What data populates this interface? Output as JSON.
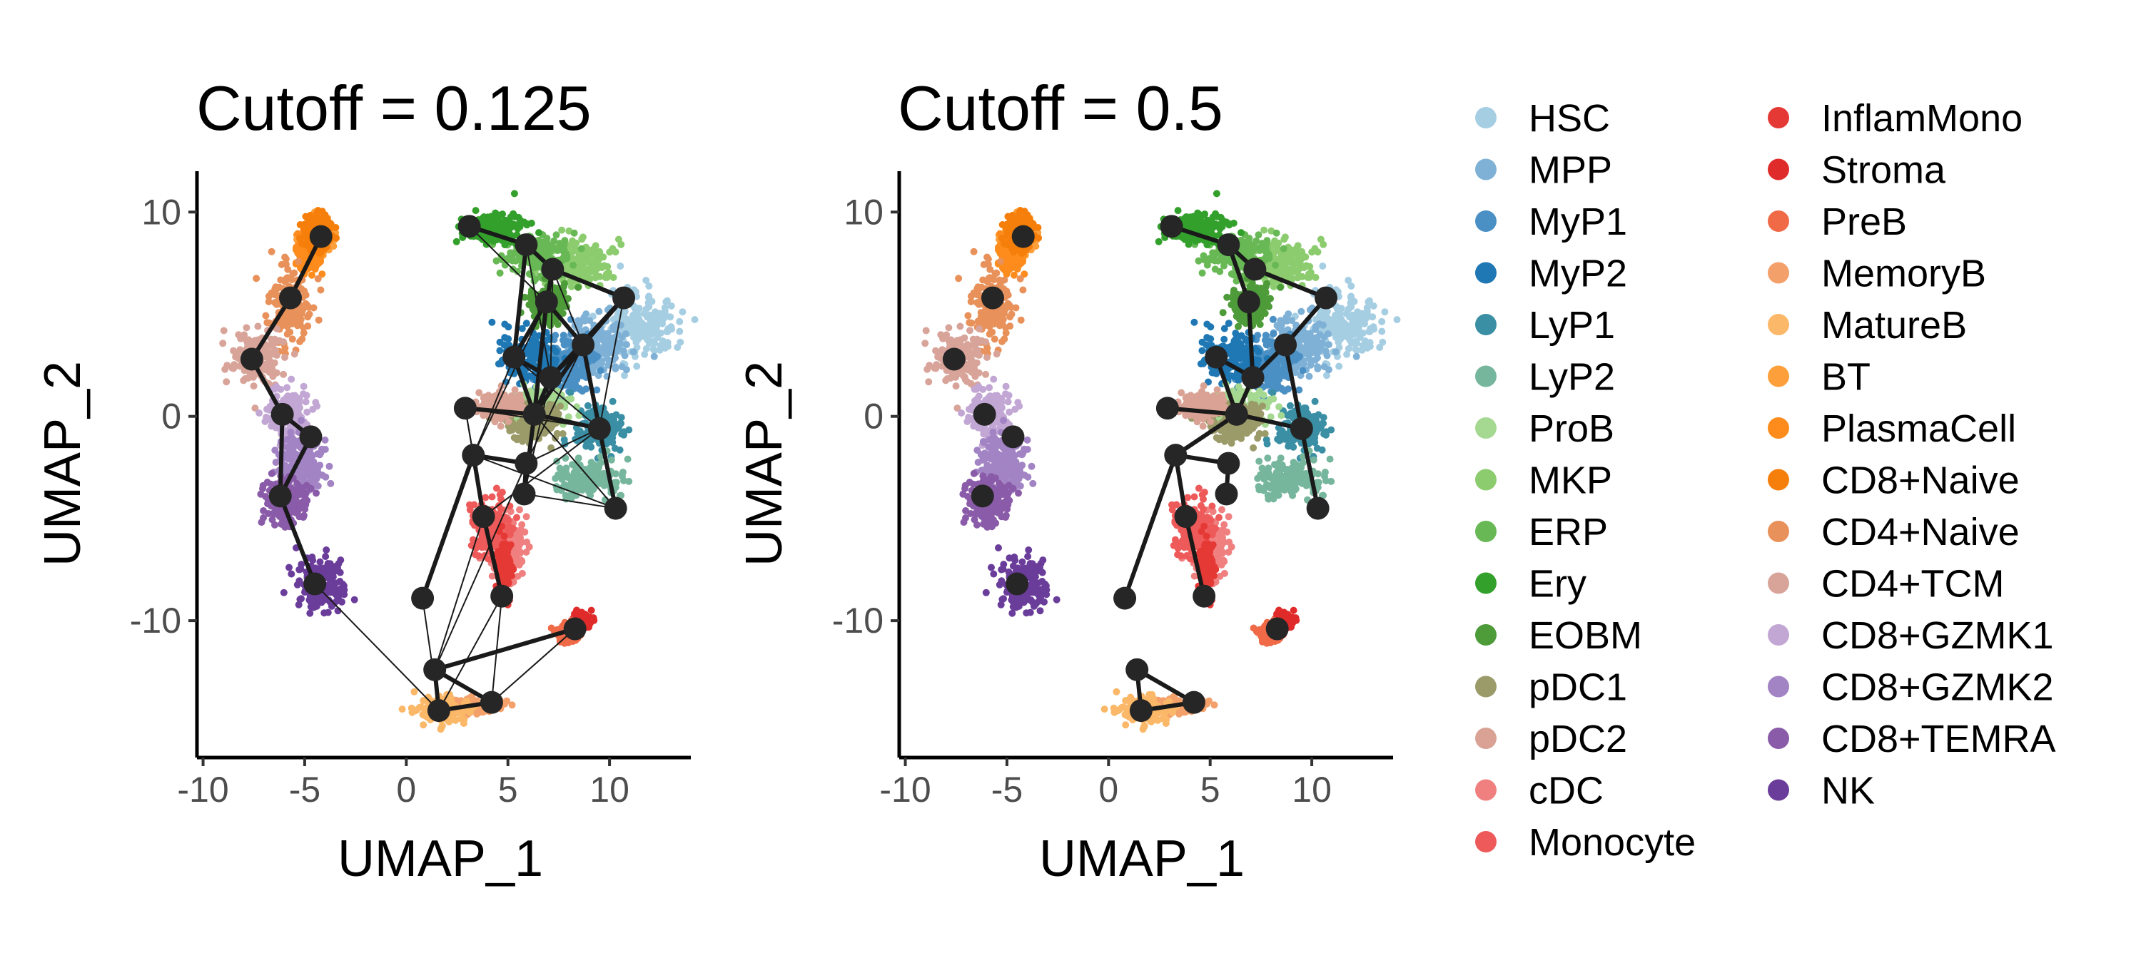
{
  "chart_data": [
    {
      "type": "scatter",
      "title": "Cutoff = 0.125",
      "xlabel": "UMAP_1",
      "ylabel": "UMAP_2",
      "xlim": [
        -10.3,
        14
      ],
      "ylim": [
        -16.7,
        12
      ],
      "xticks": [
        "-10",
        "-5",
        "0",
        "5",
        "10"
      ],
      "yticks": [
        "-10",
        "0",
        "10"
      ],
      "grid": false,
      "clusters": [
        {
          "cell_type": "HSC",
          "color": "#a6cee3",
          "center": [
            11.5,
            4.5
          ],
          "spread": [
            1.8,
            1.6
          ]
        },
        {
          "cell_type": "MPP",
          "color": "#7fb1d6",
          "center": [
            9.5,
            3.5
          ],
          "spread": [
            1.3,
            1.3
          ]
        },
        {
          "cell_type": "MyP1",
          "color": "#4a90c4",
          "center": [
            8.0,
            2.5
          ],
          "spread": [
            1.2,
            1.2
          ]
        },
        {
          "cell_type": "MyP2",
          "color": "#1f78b4",
          "center": [
            6.0,
            2.8
          ],
          "spread": [
            1.3,
            1.2
          ]
        },
        {
          "cell_type": "LyP1",
          "color": "#3b8fa5",
          "center": [
            9.5,
            -0.5
          ],
          "spread": [
            1.2,
            1.0
          ]
        },
        {
          "cell_type": "LyP2",
          "color": "#76b69d",
          "center": [
            9.0,
            -3.0
          ],
          "spread": [
            1.5,
            0.8
          ]
        },
        {
          "cell_type": "ProB",
          "color": "#a5d991",
          "center": [
            6.5,
            0.5
          ],
          "spread": [
            1.5,
            0.8
          ]
        },
        {
          "cell_type": "MKP",
          "color": "#8ccc6f",
          "center": [
            8.5,
            7.5
          ],
          "spread": [
            1.5,
            1.0
          ]
        },
        {
          "cell_type": "ERP",
          "color": "#68b956",
          "center": [
            6.5,
            8.0
          ],
          "spread": [
            1.5,
            1.0
          ]
        },
        {
          "cell_type": "Ery",
          "color": "#33a02c",
          "center": [
            4.5,
            9.2
          ],
          "spread": [
            1.6,
            0.7
          ]
        },
        {
          "cell_type": "EOBM",
          "color": "#4e9b3a",
          "center": [
            7.0,
            5.5
          ],
          "spread": [
            0.8,
            0.8
          ]
        },
        {
          "cell_type": "pDC1",
          "color": "#9b9b6a",
          "center": [
            6.3,
            -0.3
          ],
          "spread": [
            1.2,
            0.8
          ]
        },
        {
          "cell_type": "pDC2",
          "color": "#d9a294",
          "center": [
            4.5,
            0.5
          ],
          "spread": [
            1.0,
            0.6
          ]
        },
        {
          "cell_type": "cDC",
          "color": "#f08080",
          "center": [
            5.0,
            -6.5
          ],
          "spread": [
            0.8,
            1.5
          ]
        },
        {
          "cell_type": "Monocyte",
          "color": "#ee5a5a",
          "center": [
            4.2,
            -5.5
          ],
          "spread": [
            0.9,
            1.3
          ]
        },
        {
          "cell_type": "InflamMono",
          "color": "#e53935",
          "center": [
            4.8,
            -7.5
          ],
          "spread": [
            0.3,
            1.2
          ]
        },
        {
          "cell_type": "Stroma",
          "color": "#e02b2b",
          "center": [
            8.6,
            -10.0
          ],
          "spread": [
            0.4,
            0.4
          ]
        },
        {
          "cell_type": "PreB",
          "color": "#f06a48",
          "center": [
            8.0,
            -10.6
          ],
          "spread": [
            0.5,
            0.4
          ]
        },
        {
          "cell_type": "MemoryB",
          "color": "#f4a06a",
          "center": [
            3.0,
            -14.2
          ],
          "spread": [
            1.5,
            0.4
          ]
        },
        {
          "cell_type": "MatureB",
          "color": "#fbb868",
          "center": [
            1.8,
            -14.4
          ],
          "spread": [
            1.1,
            0.6
          ]
        },
        {
          "cell_type": "BT",
          "color": "#fd9f3a",
          "center": [
            -4.4,
            8.8
          ],
          "spread": [
            0.6,
            0.8
          ]
        },
        {
          "cell_type": "PlasmaCell",
          "color": "#fd8c1c",
          "center": [
            -4.8,
            8.0
          ],
          "spread": [
            0.5,
            0.9
          ]
        },
        {
          "cell_type": "CD8+Naive",
          "color": "#f57f0a",
          "center": [
            -4.4,
            9.0
          ],
          "spread": [
            0.6,
            0.8
          ]
        },
        {
          "cell_type": "CD4+Naive",
          "color": "#e8915a",
          "center": [
            -5.8,
            5.5
          ],
          "spread": [
            0.9,
            1.5
          ]
        },
        {
          "cell_type": "CD4+TCM",
          "color": "#d8a49a",
          "center": [
            -7.3,
            2.8
          ],
          "spread": [
            1.2,
            1.1
          ]
        },
        {
          "cell_type": "CD8+GZMK1",
          "color": "#c2a7d4",
          "center": [
            -5.8,
            0.2
          ],
          "spread": [
            0.9,
            1.2
          ]
        },
        {
          "cell_type": "CD8+GZMK2",
          "color": "#a283c4",
          "center": [
            -5.2,
            -2.2
          ],
          "spread": [
            1.0,
            1.3
          ]
        },
        {
          "cell_type": "CD8+TEMRA",
          "color": "#8a5ba8",
          "center": [
            -5.8,
            -4.2
          ],
          "spread": [
            1.0,
            1.0
          ]
        },
        {
          "cell_type": "NK",
          "color": "#6a3d9a",
          "center": [
            -4.2,
            -8.3
          ],
          "spread": [
            1.0,
            1.3
          ]
        }
      ],
      "nodes": [
        [
          -4.2,
          8.8
        ],
        [
          -5.7,
          5.8
        ],
        [
          -7.6,
          2.8
        ],
        [
          -6.1,
          0.1
        ],
        [
          -4.7,
          -1.0
        ],
        [
          -6.2,
          -3.9
        ],
        [
          -4.5,
          -8.2
        ],
        [
          3.1,
          9.3
        ],
        [
          5.9,
          8.4
        ],
        [
          7.2,
          7.2
        ],
        [
          10.7,
          5.8
        ],
        [
          6.9,
          5.6
        ],
        [
          8.7,
          3.5
        ],
        [
          5.3,
          2.9
        ],
        [
          7.1,
          1.9
        ],
        [
          6.3,
          0.1
        ],
        [
          2.9,
          0.4
        ],
        [
          9.5,
          -0.6
        ],
        [
          3.3,
          -1.9
        ],
        [
          5.9,
          -2.3
        ],
        [
          5.8,
          -3.8
        ],
        [
          10.3,
          -4.5
        ],
        [
          3.8,
          -4.9
        ],
        [
          4.7,
          -8.8
        ],
        [
          0.8,
          -8.9
        ],
        [
          8.3,
          -10.4
        ],
        [
          1.4,
          -12.4
        ],
        [
          1.6,
          -14.4
        ],
        [
          4.2,
          -14.0
        ]
      ],
      "edges_thick": [
        [
          0,
          1
        ],
        [
          1,
          2
        ],
        [
          2,
          3
        ],
        [
          3,
          4
        ],
        [
          3,
          5
        ],
        [
          4,
          5
        ],
        [
          5,
          6
        ],
        [
          7,
          8
        ],
        [
          8,
          9
        ],
        [
          9,
          10
        ],
        [
          10,
          12
        ],
        [
          12,
          11
        ],
        [
          11,
          9
        ],
        [
          11,
          13
        ],
        [
          13,
          14
        ],
        [
          14,
          12
        ],
        [
          13,
          15
        ],
        [
          15,
          16
        ],
        [
          15,
          17
        ],
        [
          17,
          21
        ],
        [
          18,
          19
        ],
        [
          19,
          20
        ],
        [
          18,
          22
        ],
        [
          22,
          23
        ],
        [
          18,
          24
        ],
        [
          26,
          27
        ],
        [
          27,
          28
        ],
        [
          28,
          26
        ],
        [
          26,
          25
        ],
        [
          12,
          15
        ],
        [
          14,
          15
        ],
        [
          11,
          15
        ],
        [
          8,
          13
        ],
        [
          17,
          12
        ],
        [
          20,
          15
        ],
        [
          10,
          14
        ]
      ],
      "edges_thin": [
        [
          6,
          27
        ],
        [
          26,
          22
        ],
        [
          26,
          19
        ],
        [
          27,
          23
        ],
        [
          25,
          28
        ],
        [
          24,
          27
        ],
        [
          16,
          18
        ],
        [
          16,
          22
        ],
        [
          19,
          17
        ],
        [
          20,
          21
        ],
        [
          18,
          21
        ],
        [
          22,
          17
        ],
        [
          13,
          18
        ],
        [
          11,
          18
        ],
        [
          12,
          19
        ],
        [
          14,
          20
        ],
        [
          9,
          12
        ],
        [
          7,
          11
        ],
        [
          8,
          14
        ],
        [
          15,
          21
        ],
        [
          16,
          17
        ],
        [
          13,
          17
        ],
        [
          10,
          17
        ],
        [
          9,
          14
        ],
        [
          23,
          28
        ],
        [
          12,
          21
        ]
      ]
    },
    {
      "type": "scatter",
      "title": "Cutoff = 0.5",
      "xlabel": "UMAP_1",
      "ylabel": "UMAP_2",
      "xlim": [
        -10.3,
        14
      ],
      "ylim": [
        -16.7,
        12
      ],
      "xticks": [
        "-10",
        "-5",
        "0",
        "5",
        "10"
      ],
      "yticks": [
        "-10",
        "0",
        "10"
      ],
      "grid": false,
      "nodes": [
        [
          -4.2,
          8.8
        ],
        [
          -5.7,
          5.8
        ],
        [
          -7.6,
          2.8
        ],
        [
          -6.1,
          0.1
        ],
        [
          -4.7,
          -1.0
        ],
        [
          -6.2,
          -3.9
        ],
        [
          -4.5,
          -8.2
        ],
        [
          3.1,
          9.3
        ],
        [
          5.9,
          8.4
        ],
        [
          7.2,
          7.2
        ],
        [
          10.7,
          5.8
        ],
        [
          6.9,
          5.6
        ],
        [
          8.7,
          3.5
        ],
        [
          5.3,
          2.9
        ],
        [
          7.1,
          1.9
        ],
        [
          6.3,
          0.1
        ],
        [
          2.9,
          0.4
        ],
        [
          9.5,
          -0.6
        ],
        [
          3.3,
          -1.9
        ],
        [
          5.9,
          -2.3
        ],
        [
          5.8,
          -3.8
        ],
        [
          10.3,
          -4.5
        ],
        [
          3.8,
          -4.9
        ],
        [
          4.7,
          -8.8
        ],
        [
          0.8,
          -8.9
        ],
        [
          8.3,
          -10.4
        ],
        [
          1.4,
          -12.4
        ],
        [
          1.6,
          -14.4
        ],
        [
          4.2,
          -14.0
        ]
      ],
      "edges_thick": [
        [
          7,
          8
        ],
        [
          8,
          9
        ],
        [
          8,
          11
        ],
        [
          9,
          10
        ],
        [
          10,
          12
        ],
        [
          12,
          14
        ],
        [
          11,
          14
        ],
        [
          13,
          14
        ],
        [
          13,
          15
        ],
        [
          15,
          16
        ],
        [
          15,
          17
        ],
        [
          17,
          21
        ],
        [
          15,
          18
        ],
        [
          18,
          19
        ],
        [
          19,
          20
        ],
        [
          18,
          22
        ],
        [
          22,
          23
        ],
        [
          18,
          24
        ],
        [
          26,
          27
        ],
        [
          27,
          28
        ],
        [
          28,
          26
        ],
        [
          14,
          15
        ],
        [
          12,
          17
        ]
      ],
      "edges_thin": []
    }
  ],
  "legend": {
    "placement": "right",
    "items": [
      {
        "label": "HSC",
        "color": "#a6cee3"
      },
      {
        "label": "MPP",
        "color": "#7fb1d6"
      },
      {
        "label": "MyP1",
        "color": "#4a90c4"
      },
      {
        "label": "MyP2",
        "color": "#1f78b4"
      },
      {
        "label": "LyP1",
        "color": "#3b8fa5"
      },
      {
        "label": "LyP2",
        "color": "#76b69d"
      },
      {
        "label": "ProB",
        "color": "#a5d991"
      },
      {
        "label": "MKP",
        "color": "#8ccc6f"
      },
      {
        "label": "ERP",
        "color": "#68b956"
      },
      {
        "label": "Ery",
        "color": "#33a02c"
      },
      {
        "label": "EOBM",
        "color": "#4e9b3a"
      },
      {
        "label": "pDC1",
        "color": "#9b9b6a"
      },
      {
        "label": "pDC2",
        "color": "#d9a294"
      },
      {
        "label": "cDC",
        "color": "#f08080"
      },
      {
        "label": "Monocyte",
        "color": "#ee5a5a"
      },
      {
        "label": "InflamMono",
        "color": "#e53935"
      },
      {
        "label": "Stroma",
        "color": "#e02b2b"
      },
      {
        "label": "PreB",
        "color": "#f06a48"
      },
      {
        "label": "MemoryB",
        "color": "#f4a06a"
      },
      {
        "label": "MatureB",
        "color": "#fbb868"
      },
      {
        "label": "BT",
        "color": "#fd9f3a"
      },
      {
        "label": "PlasmaCell",
        "color": "#fd8c1c"
      },
      {
        "label": "CD8+Naive",
        "color": "#f57f0a"
      },
      {
        "label": "CD4+Naive",
        "color": "#e8915a"
      },
      {
        "label": "CD4+TCM",
        "color": "#d8a49a"
      },
      {
        "label": "CD8+GZMK1",
        "color": "#c2a7d4"
      },
      {
        "label": "CD8+GZMK2",
        "color": "#a283c4"
      },
      {
        "label": "CD8+TEMRA",
        "color": "#8a5ba8"
      },
      {
        "label": "NK",
        "color": "#6a3d9a"
      }
    ]
  },
  "colors": {
    "node": "#262626",
    "edge": "#1a1a1a",
    "axis": "#000000"
  }
}
